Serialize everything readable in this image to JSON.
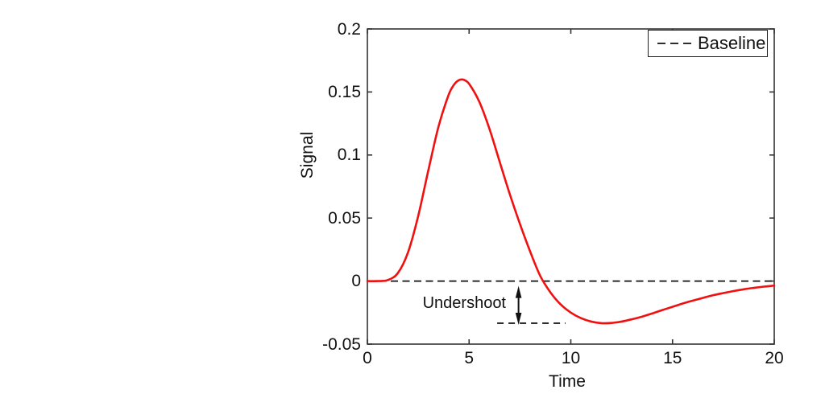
{
  "chart_data": {
    "type": "line",
    "title": "",
    "xlabel": "Time",
    "ylabel": "Signal",
    "xlim": [
      0,
      20
    ],
    "ylim": [
      -0.05,
      0.2
    ],
    "xticks": [
      0,
      5,
      10,
      15,
      20
    ],
    "xtick_labels": [
      "0",
      "5",
      "10",
      "15",
      "20"
    ],
    "yticks": [
      -0.05,
      0,
      0.05,
      0.1,
      0.15,
      0.2
    ],
    "ytick_labels": [
      "-0.05",
      "0",
      "0.05",
      "0.1",
      "0.15",
      "0.2"
    ],
    "grid": false,
    "axis_color": "#333333",
    "legend": {
      "position": "top-right",
      "entries": [
        {
          "label": "Baseline",
          "style": "dashed",
          "color": "#111111"
        }
      ]
    },
    "series": [
      {
        "name": "signal-response",
        "color": "#f01010",
        "x": [
          0,
          0.5,
          1,
          1.5,
          2,
          2.5,
          3,
          3.5,
          4,
          4.25,
          4.5,
          4.75,
          5,
          5.5,
          6,
          6.5,
          7,
          7.5,
          8,
          8.5,
          9,
          9.5,
          10,
          10.5,
          11,
          11.5,
          12,
          12.5,
          13,
          13.5,
          14,
          14.5,
          15,
          15.5,
          16,
          16.5,
          17,
          17.5,
          18,
          18.5,
          19,
          19.5,
          20
        ],
        "y": [
          0,
          0.0,
          0.0008,
          0.0064,
          0.0229,
          0.0518,
          0.0881,
          0.1228,
          0.148,
          0.1556,
          0.1594,
          0.1596,
          0.1565,
          0.1423,
          0.1208,
          0.0948,
          0.069,
          0.0453,
          0.0235,
          0.004,
          -0.009,
          -0.0185,
          -0.025,
          -0.0294,
          -0.0321,
          -0.0334,
          -0.0332,
          -0.0321,
          -0.0303,
          -0.0282,
          -0.0257,
          -0.023,
          -0.0204,
          -0.0178,
          -0.0155,
          -0.0133,
          -0.0112,
          -0.0095,
          -0.0079,
          -0.0065,
          -0.0054,
          -0.0044,
          -0.0036
        ]
      },
      {
        "name": "baseline",
        "color": "#111111",
        "style": "dashed",
        "y_const": 0
      }
    ],
    "annotations": [
      {
        "text": "Undershoot",
        "arrow": {
          "x": 7.43,
          "from": 0,
          "to": -0.0331
        },
        "dash_segment": {
          "y": -0.0334,
          "x_from": 6.38,
          "x_to": 9.74
        }
      }
    ]
  }
}
